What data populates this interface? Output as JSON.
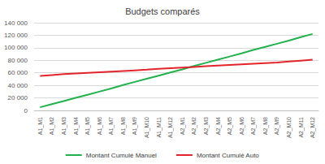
{
  "chart_data": {
    "type": "line",
    "title": "Budgets comparés",
    "categories": [
      "A1_M1",
      "A1_M2",
      "A1_M3",
      "A1_M4",
      "A1_M5",
      "A1_M6",
      "A1_M7",
      "A1_M8",
      "A1_M9",
      "A1_M10",
      "A1_M11",
      "A1_M12",
      "A2_M1",
      "A2_M2",
      "A2_M3",
      "A2_M4",
      "A2_M5",
      "A2_M6",
      "A2_M7",
      "A2_M8",
      "A2_M9",
      "A2_M10",
      "A2_M11",
      "A2_M12"
    ],
    "series": [
      {
        "name": "Montant Cumulé Manuel",
        "color": "#22b14c",
        "values": [
          5000,
          10000,
          15000,
          20000,
          25000,
          30000,
          35000,
          40500,
          45500,
          50500,
          55500,
          60500,
          65500,
          71000,
          76000,
          81000,
          86000,
          91000,
          96500,
          101500,
          106500,
          111500,
          117000,
          122000
        ]
      },
      {
        "name": "Montant Cumulé Auto",
        "color": "#e3242b",
        "values": [
          55000,
          56500,
          58000,
          59000,
          60000,
          61000,
          62000,
          63000,
          64000,
          65000,
          66500,
          67500,
          68500,
          69500,
          70500,
          71500,
          72500,
          73500,
          74500,
          75500,
          76500,
          78000,
          79500,
          81000
        ]
      }
    ],
    "ylim": [
      0,
      140000
    ],
    "yticks": [
      0,
      {
        "value": 20000,
        "label": "20 000"
      },
      {
        "value": 40000,
        "label": "40 000"
      },
      {
        "value": 60000,
        "label": "60 000"
      },
      {
        "value": 80000,
        "label": "80 000"
      },
      {
        "value": 100000,
        "label": "100 000"
      },
      {
        "value": 120000,
        "label": "120 000"
      },
      {
        "value": 140000,
        "label": "140 000"
      }
    ],
    "grid": true,
    "legend": "bottom",
    "marker": "none",
    "line_style": "solid"
  }
}
